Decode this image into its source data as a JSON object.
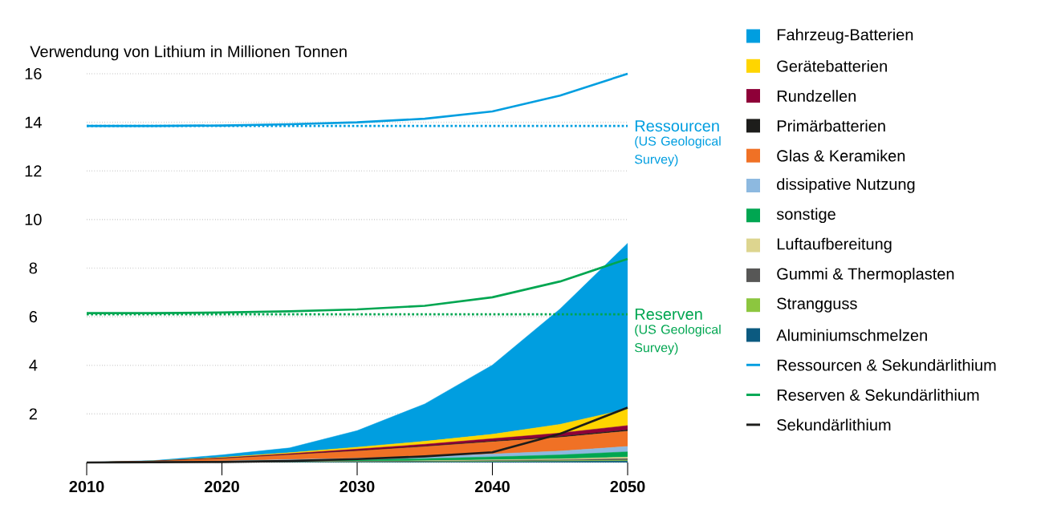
{
  "chart_data": {
    "type": "area",
    "ylabel": "Verwendung von Lithium in Millionen Tonnen",
    "x": [
      2010,
      2015,
      2020,
      2025,
      2030,
      2035,
      2040,
      2045,
      2050
    ],
    "stacked": true,
    "series": [
      {
        "name": "Aluminiumschmelzen",
        "color": "#0b5a80",
        "values": [
          0,
          0,
          0.01,
          0.01,
          0.01,
          0.02,
          0.03,
          0.04,
          0.06
        ]
      },
      {
        "name": "Strangguss",
        "color": "#8cc63f",
        "values": [
          0,
          0,
          0,
          0.01,
          0.01,
          0.01,
          0.02,
          0.03,
          0.04
        ]
      },
      {
        "name": "Gummi & Thermoplasten",
        "color": "#575756",
        "values": [
          0,
          0,
          0.01,
          0.01,
          0.02,
          0.02,
          0.03,
          0.04,
          0.06
        ]
      },
      {
        "name": "Luftaufbereitung",
        "color": "#ddd58f",
        "values": [
          0,
          0,
          0,
          0.01,
          0.01,
          0.02,
          0.03,
          0.04,
          0.06
        ]
      },
      {
        "name": "sonstige",
        "color": "#00a651",
        "values": [
          0,
          0.01,
          0.02,
          0.04,
          0.06,
          0.09,
          0.12,
          0.16,
          0.22
        ]
      },
      {
        "name": "dissipative Nutzung",
        "color": "#8db9e0",
        "values": [
          0,
          0.01,
          0.02,
          0.04,
          0.06,
          0.09,
          0.12,
          0.16,
          0.22
        ]
      },
      {
        "name": "Glas & Keramiken",
        "color": "#f07125",
        "values": [
          0,
          0.03,
          0.1,
          0.19,
          0.3,
          0.4,
          0.5,
          0.56,
          0.63
        ]
      },
      {
        "name": "Primärbatterien",
        "color": "#1d1d1b",
        "values": [
          0,
          0,
          0.01,
          0.01,
          0.02,
          0.02,
          0.03,
          0.04,
          0.05
        ]
      },
      {
        "name": "Rundzellen",
        "color": "#8e0038",
        "values": [
          0,
          0.01,
          0.02,
          0.04,
          0.06,
          0.08,
          0.1,
          0.14,
          0.18
        ]
      },
      {
        "name": "Gerätebatterien",
        "color": "#ffd500",
        "values": [
          0,
          0,
          0.02,
          0.04,
          0.08,
          0.12,
          0.18,
          0.36,
          0.68
        ]
      },
      {
        "name": "Fahrzeug-Batterien",
        "color": "#009ee0",
        "values": [
          0,
          0.02,
          0.1,
          0.2,
          0.68,
          1.54,
          2.85,
          4.75,
          6.82
        ]
      },
      {
        "name": "Ressourcen & Sekundärlithium",
        "type": "line",
        "color": "#009ee0",
        "values": [
          13.85,
          13.85,
          13.87,
          13.92,
          14.0,
          14.15,
          14.45,
          15.1,
          16.0
        ]
      },
      {
        "name": "Reserven & Sekundärlithium",
        "type": "line",
        "color": "#00a651",
        "values": [
          6.15,
          6.15,
          6.17,
          6.22,
          6.3,
          6.45,
          6.8,
          7.45,
          8.38
        ]
      },
      {
        "name": "Sekundärlithium",
        "type": "line",
        "color": "#1d1d1b",
        "values": [
          0,
          0.01,
          0.02,
          0.06,
          0.14,
          0.25,
          0.42,
          1.18,
          2.26
        ]
      }
    ],
    "xlim": [
      2010,
      2050
    ],
    "ylim": [
      0,
      16
    ],
    "xticks": [
      2010,
      2020,
      2030,
      2040,
      2050
    ],
    "yticks": [
      {
        "value": 0,
        "label": null
      },
      2,
      4,
      6,
      8,
      10,
      12,
      14,
      16
    ],
    "grid": "y",
    "legend": "right",
    "ref_lines": [
      {
        "axis": "y",
        "value": 13.85,
        "label": "Ressourcen",
        "color": "#009ee0",
        "line_style": "dotted"
      },
      {
        "axis": "y",
        "value": 6.1,
        "label": "Reserven",
        "color": "#00a651",
        "line_style": "dotted"
      }
    ],
    "annotations": [
      "(US Geological Survey)",
      "(US Geological Survey)"
    ]
  }
}
